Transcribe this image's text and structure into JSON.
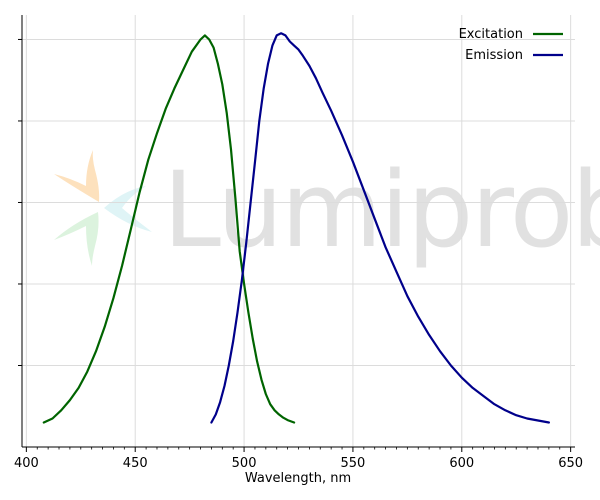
{
  "chart_data": {
    "type": "line",
    "title": "",
    "xlabel": "Wavelength, nm",
    "ylabel": "",
    "xlim": [
      398,
      652
    ],
    "ylim": [
      0,
      1.06
    ],
    "xticks": [
      400,
      450,
      500,
      550,
      600,
      650
    ],
    "yticks": [
      0.2,
      0.4,
      0.6,
      0.8,
      1.0
    ],
    "grid": true,
    "legend_position": "top-right",
    "series": [
      {
        "name": "Excitation",
        "color": "#006400",
        "x": [
          408,
          412,
          416,
          420,
          424,
          428,
          432,
          436,
          440,
          444,
          448,
          452,
          456,
          460,
          464,
          468,
          472,
          476,
          480,
          482,
          484,
          486,
          488,
          490,
          492,
          494,
          496,
          498,
          500,
          502,
          504,
          506,
          508,
          510,
          512,
          514,
          516,
          518,
          520,
          523
        ],
        "y": [
          0.06,
          0.07,
          0.09,
          0.115,
          0.145,
          0.185,
          0.235,
          0.295,
          0.365,
          0.445,
          0.535,
          0.625,
          0.705,
          0.77,
          0.83,
          0.88,
          0.925,
          0.97,
          1.0,
          1.01,
          1.0,
          0.98,
          0.94,
          0.89,
          0.82,
          0.73,
          0.61,
          0.48,
          0.4,
          0.33,
          0.265,
          0.21,
          0.165,
          0.13,
          0.105,
          0.09,
          0.08,
          0.072,
          0.066,
          0.06
        ]
      },
      {
        "name": "Emission",
        "color": "#00008B",
        "x": [
          485,
          487,
          489,
          491,
          493,
          495,
          497,
          499,
          501,
          503,
          505,
          507,
          509,
          511,
          513,
          515,
          517,
          519,
          521,
          523,
          525,
          527,
          530,
          533,
          536,
          540,
          545,
          550,
          555,
          560,
          565,
          570,
          575,
          580,
          585,
          590,
          595,
          600,
          605,
          610,
          615,
          620,
          625,
          630,
          635,
          640
        ],
        "y": [
          0.06,
          0.08,
          0.11,
          0.15,
          0.2,
          0.26,
          0.33,
          0.41,
          0.5,
          0.6,
          0.7,
          0.8,
          0.88,
          0.94,
          0.985,
          1.01,
          1.015,
          1.01,
          0.995,
          0.985,
          0.975,
          0.96,
          0.935,
          0.905,
          0.87,
          0.825,
          0.765,
          0.7,
          0.63,
          0.56,
          0.49,
          0.43,
          0.37,
          0.32,
          0.275,
          0.235,
          0.2,
          0.17,
          0.145,
          0.125,
          0.105,
          0.09,
          0.078,
          0.07,
          0.065,
          0.06
        ]
      }
    ]
  },
  "watermark": {
    "text": "Lumiprobe",
    "colors": [
      "#fde1bd",
      "#dcf3de",
      "#dff4f6"
    ]
  }
}
